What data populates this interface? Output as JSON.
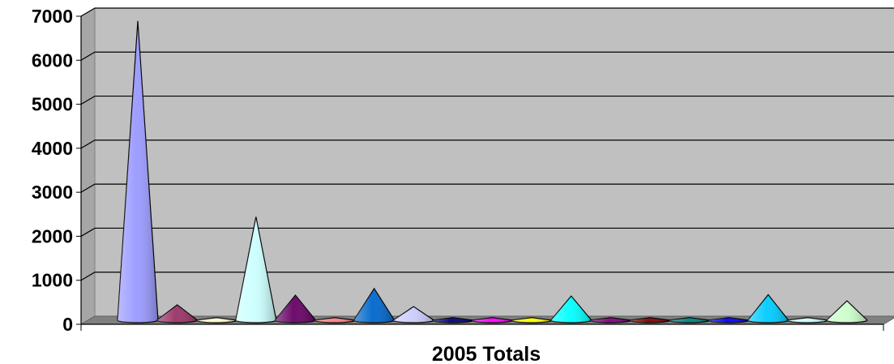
{
  "chart_data": {
    "type": "bar",
    "shape": "cone",
    "categories": [
      "2005 Totals"
    ],
    "xlabel": "2005 Totals",
    "ylabel": "",
    "ylim": [
      0,
      7000
    ],
    "yticks": [
      0,
      1000,
      2000,
      3000,
      4000,
      5000,
      6000,
      7000
    ],
    "grid": true,
    "legend": "none",
    "plot_background": "#c0c0c0",
    "series": [
      {
        "values": [
          6800
        ],
        "color": "#9999ff"
      },
      {
        "values": [
          350
        ],
        "color": "#993366"
      },
      {
        "values": [
          60
        ],
        "color": "#ffffcc"
      },
      {
        "values": [
          2350
        ],
        "color": "#ccffff"
      },
      {
        "values": [
          570
        ],
        "color": "#660066"
      },
      {
        "values": [
          60
        ],
        "color": "#ff8080"
      },
      {
        "values": [
          720
        ],
        "color": "#0066cc"
      },
      {
        "values": [
          310
        ],
        "color": "#ccccff"
      },
      {
        "values": [
          60
        ],
        "color": "#000080"
      },
      {
        "values": [
          60
        ],
        "color": "#ff00ff"
      },
      {
        "values": [
          60
        ],
        "color": "#ffff00"
      },
      {
        "values": [
          550
        ],
        "color": "#00ffff"
      },
      {
        "values": [
          60
        ],
        "color": "#800080"
      },
      {
        "values": [
          60
        ],
        "color": "#800000"
      },
      {
        "values": [
          60
        ],
        "color": "#008080"
      },
      {
        "values": [
          60
        ],
        "color": "#0000ff"
      },
      {
        "values": [
          580
        ],
        "color": "#00ccff"
      },
      {
        "values": [
          60
        ],
        "color": "#ccffff"
      },
      {
        "values": [
          440
        ],
        "color": "#ccffcc"
      }
    ]
  }
}
